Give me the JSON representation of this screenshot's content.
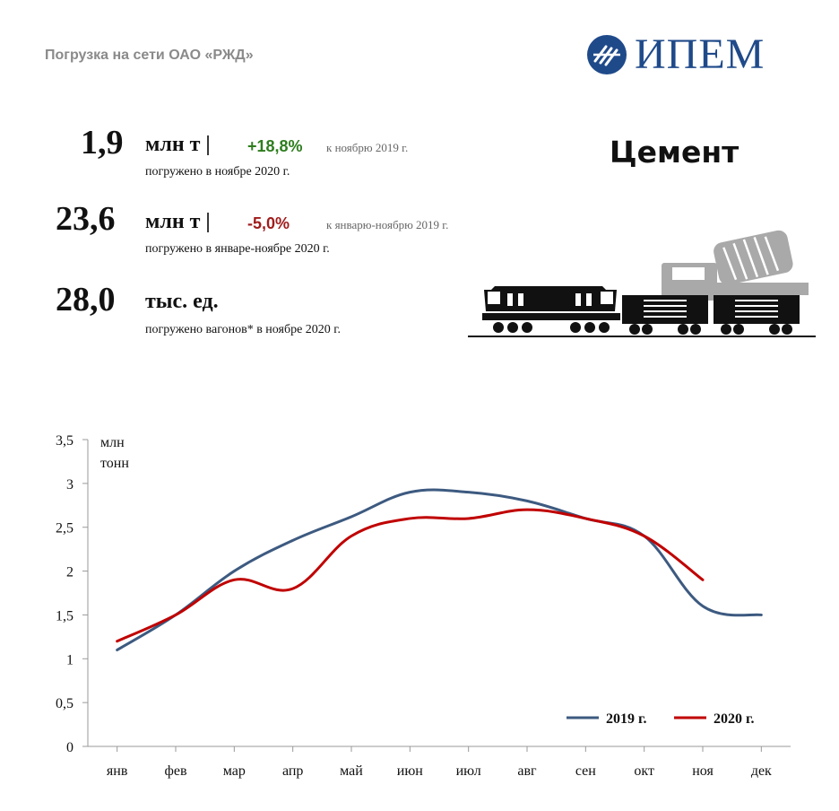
{
  "header": {
    "title": "Погрузка на сети ОАО «РЖД»"
  },
  "logo": {
    "text": "ИПЕМ"
  },
  "category": "Цемент",
  "stats": [
    {
      "value": "1,9",
      "unit": "млн т |",
      "change": "+18,8%",
      "change_color": "#2e7d1e",
      "compare": "к ноябрю 2019 г.",
      "caption": "погружено в ноябре 2020 г."
    },
    {
      "value": "23,6",
      "unit": "млн т |",
      "change": "-5,0%",
      "change_color": "#a01c1c",
      "compare": "к январю-ноябрю 2019 г.",
      "caption": "погружено в январе-ноябре 2020 г."
    },
    {
      "value": "28,0",
      "unit": "тыс. ед.",
      "change": "",
      "change_color": "#111111",
      "compare": "",
      "caption": "погружено вагонов* в ноябре 2020 г."
    }
  ],
  "chart_data": {
    "type": "line",
    "title": "",
    "ylabel": "млн тонн",
    "ylabel_lines": [
      "млн",
      "тонн"
    ],
    "xlabel": "",
    "categories": [
      "янв",
      "фев",
      "мар",
      "апр",
      "май",
      "июн",
      "июл",
      "авг",
      "сен",
      "окт",
      "ноя",
      "дек"
    ],
    "yticks": [
      "0",
      "0,5",
      "1",
      "1,5",
      "2",
      "2,5",
      "3",
      "3,5"
    ],
    "ylim": [
      0,
      3.5
    ],
    "grid": false,
    "legend_position": "bottom-right",
    "series": [
      {
        "name": "2019 г.",
        "color": "#3d5a80",
        "values": [
          1.1,
          1.5,
          2.0,
          2.35,
          2.62,
          2.9,
          2.9,
          2.8,
          2.6,
          2.4,
          1.6,
          1.5
        ]
      },
      {
        "name": "2020 г.",
        "color": "#c00000",
        "values": [
          1.2,
          1.5,
          1.9,
          1.8,
          2.4,
          2.6,
          2.6,
          2.7,
          2.6,
          2.4,
          1.9,
          null
        ]
      }
    ]
  }
}
